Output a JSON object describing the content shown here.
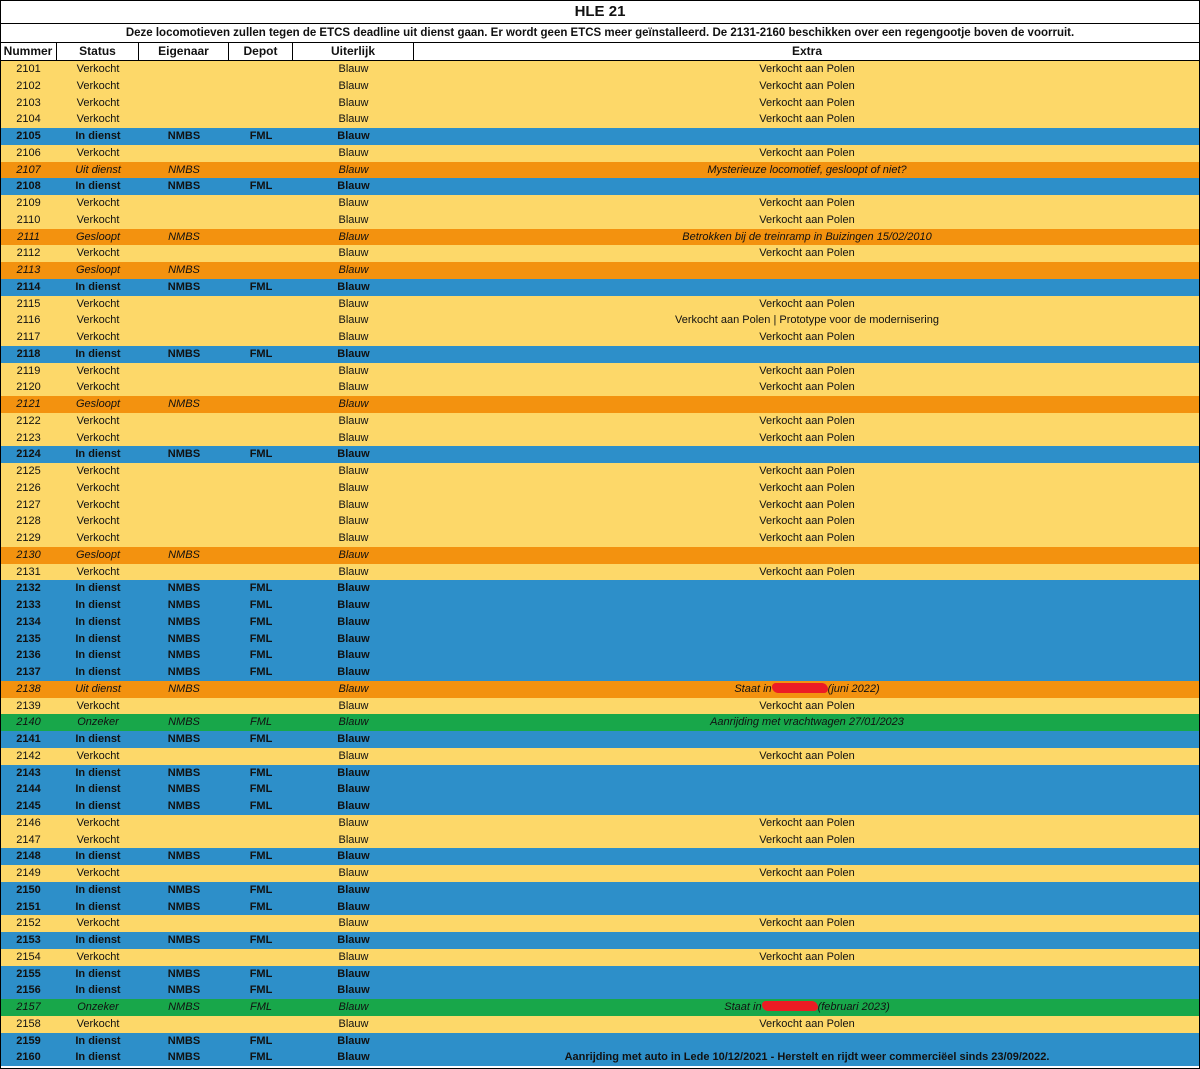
{
  "title": "HLE 21",
  "subtitle": "Deze locomotieven zullen tegen de ETCS deadline uit dienst gaan. Er wordt geen ETCS meer geïnstalleerd. De 2131-2160 beschikken over een regengootje boven de voorruit.",
  "headers": {
    "nummer": "Nummer",
    "status": "Status",
    "eigenaar": "Eigenaar",
    "depot": "Depot",
    "uiterlijk": "Uiterlijk",
    "extra": "Extra"
  },
  "colors": {
    "verkocht": "#fdd869",
    "in_dienst": "#2d8fc9",
    "gesloopt_uit_dienst": "#f3920f",
    "onzeker": "#18a74a",
    "redaction": "#ec1c24"
  },
  "rows": [
    {
      "nr": "2101",
      "status": "Verkocht",
      "eigenaar": "",
      "depot": "",
      "uiterlijk": "Blauw",
      "extra": "Verkocht aan Polen",
      "style": "verkocht"
    },
    {
      "nr": "2102",
      "status": "Verkocht",
      "eigenaar": "",
      "depot": "",
      "uiterlijk": "Blauw",
      "extra": "Verkocht aan Polen",
      "style": "verkocht"
    },
    {
      "nr": "2103",
      "status": "Verkocht",
      "eigenaar": "",
      "depot": "",
      "uiterlijk": "Blauw",
      "extra": "Verkocht aan Polen",
      "style": "verkocht"
    },
    {
      "nr": "2104",
      "status": "Verkocht",
      "eigenaar": "",
      "depot": "",
      "uiterlijk": "Blauw",
      "extra": "Verkocht aan Polen",
      "style": "verkocht"
    },
    {
      "nr": "2105",
      "status": "In dienst",
      "eigenaar": "NMBS",
      "depot": "FML",
      "uiterlijk": "Blauw",
      "extra": "",
      "style": "indienst"
    },
    {
      "nr": "2106",
      "status": "Verkocht",
      "eigenaar": "",
      "depot": "",
      "uiterlijk": "Blauw",
      "extra": "Verkocht aan Polen",
      "style": "verkocht"
    },
    {
      "nr": "2107",
      "status": "Uit dienst",
      "eigenaar": "NMBS",
      "depot": "",
      "uiterlijk": "Blauw",
      "extra": "Mysterieuze locomotief, gesloopt of niet?",
      "style": "orange"
    },
    {
      "nr": "2108",
      "status": "In dienst",
      "eigenaar": "NMBS",
      "depot": "FML",
      "uiterlijk": "Blauw",
      "extra": "",
      "style": "indienst"
    },
    {
      "nr": "2109",
      "status": "Verkocht",
      "eigenaar": "",
      "depot": "",
      "uiterlijk": "Blauw",
      "extra": "Verkocht aan Polen",
      "style": "verkocht"
    },
    {
      "nr": "2110",
      "status": "Verkocht",
      "eigenaar": "",
      "depot": "",
      "uiterlijk": "Blauw",
      "extra": "Verkocht aan Polen",
      "style": "verkocht"
    },
    {
      "nr": "2111",
      "status": "Gesloopt",
      "eigenaar": "NMBS",
      "depot": "",
      "uiterlijk": "Blauw",
      "extra": "Betrokken bij de treinramp in Buizingen 15/02/2010",
      "style": "orange"
    },
    {
      "nr": "2112",
      "status": "Verkocht",
      "eigenaar": "",
      "depot": "",
      "uiterlijk": "Blauw",
      "extra": "Verkocht aan Polen",
      "style": "verkocht"
    },
    {
      "nr": "2113",
      "status": "Gesloopt",
      "eigenaar": "NMBS",
      "depot": "",
      "uiterlijk": "Blauw",
      "extra": "",
      "style": "orange"
    },
    {
      "nr": "2114",
      "status": "In dienst",
      "eigenaar": "NMBS",
      "depot": "FML",
      "uiterlijk": "Blauw",
      "extra": "",
      "style": "indienst"
    },
    {
      "nr": "2115",
      "status": "Verkocht",
      "eigenaar": "",
      "depot": "",
      "uiterlijk": "Blauw",
      "extra": "Verkocht aan Polen",
      "style": "verkocht"
    },
    {
      "nr": "2116",
      "status": "Verkocht",
      "eigenaar": "",
      "depot": "",
      "uiterlijk": "Blauw",
      "extra": "Verkocht aan Polen | Prototype voor de modernisering",
      "style": "verkocht"
    },
    {
      "nr": "2117",
      "status": "Verkocht",
      "eigenaar": "",
      "depot": "",
      "uiterlijk": "Blauw",
      "extra": "Verkocht aan Polen",
      "style": "verkocht"
    },
    {
      "nr": "2118",
      "status": "In dienst",
      "eigenaar": "NMBS",
      "depot": "FML",
      "uiterlijk": "Blauw",
      "extra": "",
      "style": "indienst"
    },
    {
      "nr": "2119",
      "status": "Verkocht",
      "eigenaar": "",
      "depot": "",
      "uiterlijk": "Blauw",
      "extra": "Verkocht aan Polen",
      "style": "verkocht"
    },
    {
      "nr": "2120",
      "status": "Verkocht",
      "eigenaar": "",
      "depot": "",
      "uiterlijk": "Blauw",
      "extra": "Verkocht aan Polen",
      "style": "verkocht"
    },
    {
      "nr": "2121",
      "status": "Gesloopt",
      "eigenaar": "NMBS",
      "depot": "",
      "uiterlijk": "Blauw",
      "extra": "",
      "style": "orange"
    },
    {
      "nr": "2122",
      "status": "Verkocht",
      "eigenaar": "",
      "depot": "",
      "uiterlijk": "Blauw",
      "extra": "Verkocht aan Polen",
      "style": "verkocht"
    },
    {
      "nr": "2123",
      "status": "Verkocht",
      "eigenaar": "",
      "depot": "",
      "uiterlijk": "Blauw",
      "extra": "Verkocht aan Polen",
      "style": "verkocht"
    },
    {
      "nr": "2124",
      "status": "In dienst",
      "eigenaar": "NMBS",
      "depot": "FML",
      "uiterlijk": "Blauw",
      "extra": "",
      "style": "indienst"
    },
    {
      "nr": "2125",
      "status": "Verkocht",
      "eigenaar": "",
      "depot": "",
      "uiterlijk": "Blauw",
      "extra": "Verkocht aan Polen",
      "style": "verkocht"
    },
    {
      "nr": "2126",
      "status": "Verkocht",
      "eigenaar": "",
      "depot": "",
      "uiterlijk": "Blauw",
      "extra": "Verkocht aan Polen",
      "style": "verkocht"
    },
    {
      "nr": "2127",
      "status": "Verkocht",
      "eigenaar": "",
      "depot": "",
      "uiterlijk": "Blauw",
      "extra": "Verkocht aan Polen",
      "style": "verkocht"
    },
    {
      "nr": "2128",
      "status": "Verkocht",
      "eigenaar": "",
      "depot": "",
      "uiterlijk": "Blauw",
      "extra": "Verkocht aan Polen",
      "style": "verkocht"
    },
    {
      "nr": "2129",
      "status": "Verkocht",
      "eigenaar": "",
      "depot": "",
      "uiterlijk": "Blauw",
      "extra": "Verkocht aan Polen",
      "style": "verkocht"
    },
    {
      "nr": "2130",
      "status": "Gesloopt",
      "eigenaar": "NMBS",
      "depot": "",
      "uiterlijk": "Blauw",
      "extra": "",
      "style": "orange"
    },
    {
      "nr": "2131",
      "status": "Verkocht",
      "eigenaar": "",
      "depot": "",
      "uiterlijk": "Blauw",
      "extra": "Verkocht aan Polen",
      "style": "verkocht"
    },
    {
      "nr": "2132",
      "status": "In dienst",
      "eigenaar": "NMBS",
      "depot": "FML",
      "uiterlijk": "Blauw",
      "extra": "",
      "style": "indienst"
    },
    {
      "nr": "2133",
      "status": "In dienst",
      "eigenaar": "NMBS",
      "depot": "FML",
      "uiterlijk": "Blauw",
      "extra": "",
      "style": "indienst"
    },
    {
      "nr": "2134",
      "status": "In dienst",
      "eigenaar": "NMBS",
      "depot": "FML",
      "uiterlijk": "Blauw",
      "extra": "",
      "style": "indienst"
    },
    {
      "nr": "2135",
      "status": "In dienst",
      "eigenaar": "NMBS",
      "depot": "FML",
      "uiterlijk": "Blauw",
      "extra": "",
      "style": "indienst"
    },
    {
      "nr": "2136",
      "status": "In dienst",
      "eigenaar": "NMBS",
      "depot": "FML",
      "uiterlijk": "Blauw",
      "extra": "",
      "style": "indienst"
    },
    {
      "nr": "2137",
      "status": "In dienst",
      "eigenaar": "NMBS",
      "depot": "FML",
      "uiterlijk": "Blauw",
      "extra": "",
      "style": "indienst"
    },
    {
      "nr": "2138",
      "status": "Uit dienst",
      "eigenaar": "NMBS",
      "depot": "",
      "uiterlijk": "Blauw",
      "extra": "",
      "extra_pre": "Staat in",
      "extra_post": "(juni 2022)",
      "redacted": true,
      "style": "orange"
    },
    {
      "nr": "2139",
      "status": "Verkocht",
      "eigenaar": "",
      "depot": "",
      "uiterlijk": "Blauw",
      "extra": "Verkocht aan Polen",
      "style": "verkocht"
    },
    {
      "nr": "2140",
      "status": "Onzeker",
      "eigenaar": "NMBS",
      "depot": "FML",
      "uiterlijk": "Blauw",
      "extra": "Aanrijding met vrachtwagen 27/01/2023",
      "style": "green"
    },
    {
      "nr": "2141",
      "status": "In dienst",
      "eigenaar": "NMBS",
      "depot": "FML",
      "uiterlijk": "Blauw",
      "extra": "",
      "style": "indienst"
    },
    {
      "nr": "2142",
      "status": "Verkocht",
      "eigenaar": "",
      "depot": "",
      "uiterlijk": "Blauw",
      "extra": "Verkocht aan Polen",
      "style": "verkocht"
    },
    {
      "nr": "2143",
      "status": "In dienst",
      "eigenaar": "NMBS",
      "depot": "FML",
      "uiterlijk": "Blauw",
      "extra": "",
      "style": "indienst"
    },
    {
      "nr": "2144",
      "status": "In dienst",
      "eigenaar": "NMBS",
      "depot": "FML",
      "uiterlijk": "Blauw",
      "extra": "",
      "style": "indienst"
    },
    {
      "nr": "2145",
      "status": "In dienst",
      "eigenaar": "NMBS",
      "depot": "FML",
      "uiterlijk": "Blauw",
      "extra": "",
      "style": "indienst"
    },
    {
      "nr": "2146",
      "status": "Verkocht",
      "eigenaar": "",
      "depot": "",
      "uiterlijk": "Blauw",
      "extra": "Verkocht aan Polen",
      "style": "verkocht"
    },
    {
      "nr": "2147",
      "status": "Verkocht",
      "eigenaar": "",
      "depot": "",
      "uiterlijk": "Blauw",
      "extra": "Verkocht aan Polen",
      "style": "verkocht"
    },
    {
      "nr": "2148",
      "status": "In dienst",
      "eigenaar": "NMBS",
      "depot": "FML",
      "uiterlijk": "Blauw",
      "extra": "",
      "style": "indienst"
    },
    {
      "nr": "2149",
      "status": "Verkocht",
      "eigenaar": "",
      "depot": "",
      "uiterlijk": "Blauw",
      "extra": "Verkocht aan Polen",
      "style": "verkocht"
    },
    {
      "nr": "2150",
      "status": "In dienst",
      "eigenaar": "NMBS",
      "depot": "FML",
      "uiterlijk": "Blauw",
      "extra": "",
      "style": "indienst"
    },
    {
      "nr": "2151",
      "status": "In dienst",
      "eigenaar": "NMBS",
      "depot": "FML",
      "uiterlijk": "Blauw",
      "extra": "",
      "style": "indienst"
    },
    {
      "nr": "2152",
      "status": "Verkocht",
      "eigenaar": "",
      "depot": "",
      "uiterlijk": "Blauw",
      "extra": "Verkocht aan Polen",
      "style": "verkocht"
    },
    {
      "nr": "2153",
      "status": "In dienst",
      "eigenaar": "NMBS",
      "depot": "FML",
      "uiterlijk": "Blauw",
      "extra": "",
      "style": "indienst"
    },
    {
      "nr": "2154",
      "status": "Verkocht",
      "eigenaar": "",
      "depot": "",
      "uiterlijk": "Blauw",
      "extra": "Verkocht aan Polen",
      "style": "verkocht"
    },
    {
      "nr": "2155",
      "status": "In dienst",
      "eigenaar": "NMBS",
      "depot": "FML",
      "uiterlijk": "Blauw",
      "extra": "",
      "style": "indienst"
    },
    {
      "nr": "2156",
      "status": "In dienst",
      "eigenaar": "NMBS",
      "depot": "FML",
      "uiterlijk": "Blauw",
      "extra": "",
      "style": "indienst"
    },
    {
      "nr": "2157",
      "status": "Onzeker",
      "eigenaar": "NMBS",
      "depot": "FML",
      "uiterlijk": "Blauw",
      "extra": "",
      "extra_pre": "Staat in",
      "extra_post": "(februari 2023)",
      "redacted": true,
      "style": "green"
    },
    {
      "nr": "2158",
      "status": "Verkocht",
      "eigenaar": "",
      "depot": "",
      "uiterlijk": "Blauw",
      "extra": "Verkocht aan Polen",
      "style": "verkocht"
    },
    {
      "nr": "2159",
      "status": "In dienst",
      "eigenaar": "NMBS",
      "depot": "FML",
      "uiterlijk": "Blauw",
      "extra": "",
      "style": "indienst"
    },
    {
      "nr": "2160",
      "status": "In dienst",
      "eigenaar": "NMBS",
      "depot": "FML",
      "uiterlijk": "Blauw",
      "extra": "Aanrijding met auto in Lede 10/12/2021 - Herstelt en rijdt weer commerciëel sinds 23/09/2022.",
      "style": "indienst"
    }
  ]
}
